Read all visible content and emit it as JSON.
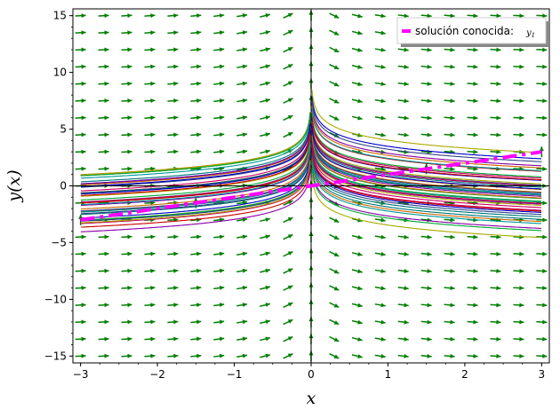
{
  "chart_data": {
    "type": "line",
    "xlabel": "x",
    "ylabel": "y(x)",
    "xlim": [
      -3.1,
      3.1
    ],
    "ylim": [
      -15.6,
      15.6
    ],
    "xticks": [
      -3,
      -2,
      -1,
      0,
      1,
      2,
      3
    ],
    "yticks": [
      -15,
      -10,
      -5,
      0,
      5,
      10,
      15
    ],
    "xtick_labels": [
      "−3",
      "−2",
      "−1",
      "0",
      "1",
      "2",
      "3"
    ],
    "ytick_labels": [
      "−15",
      "−10",
      "−5",
      "0",
      "5",
      "10",
      "15"
    ],
    "legend": {
      "position": "top-right",
      "label": "solución conocida:",
      "label_math": "y",
      "label_math_sub": "1"
    },
    "known_solution": {
      "name": "solución conocida: y1",
      "formula": "y = x",
      "x": [
        -3,
        3
      ],
      "y": [
        -3,
        3
      ],
      "color": "#ff00ff",
      "style": "dash-dot"
    },
    "direction_field": {
      "color": "#007f00",
      "equation": "y' = (y - x) / (x^2 - x*y)",
      "grid_x_range": [
        -3,
        3
      ],
      "grid_y_range": [
        -15,
        15
      ]
    },
    "solution_curves": {
      "description": "family y = x * (C + (x - 1/x) ... ) shown as colored curves",
      "colors": [
        "#0000cc",
        "#cc6600",
        "#00aa33",
        "#cc0066",
        "#007777",
        "#8800aa",
        "#aaaa00",
        "#334488",
        "#009999",
        "#cc0000"
      ]
    },
    "colors": {
      "axis": "#000000",
      "background": "#ffffff"
    }
  }
}
